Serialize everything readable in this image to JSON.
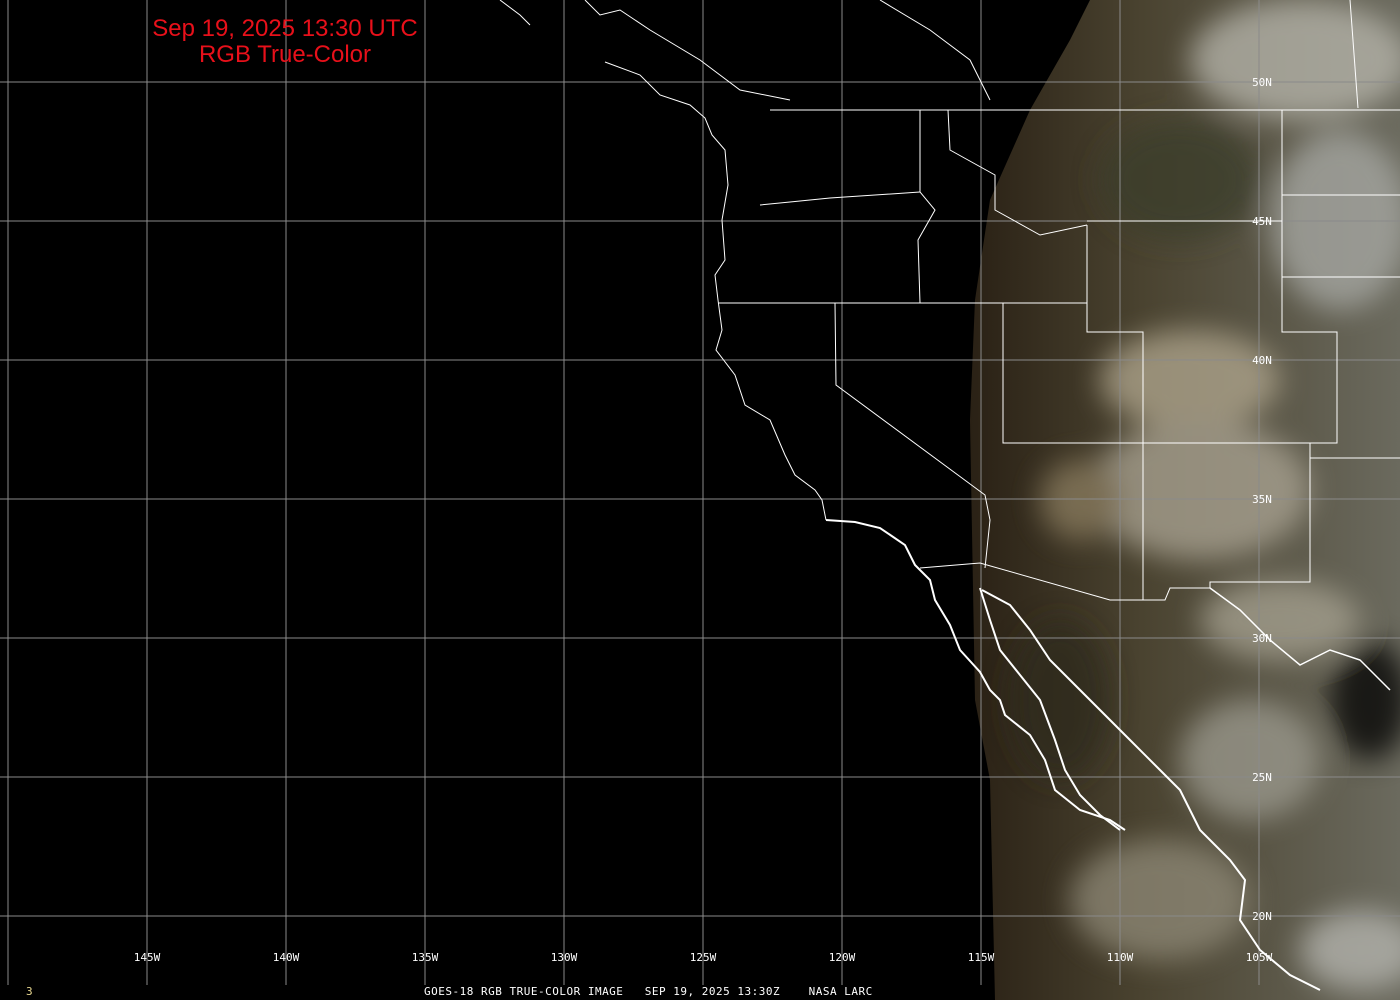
{
  "title": {
    "line1": "Sep 19, 2025 13:30 UTC",
    "line2": "RGB True-Color"
  },
  "footer": {
    "frame_number": "3",
    "caption": "GOES-18 RGB TRUE-COLOR IMAGE   SEP 19, 2025 13:30Z    NASA LARC"
  },
  "longitude_labels": [
    "145W",
    "140W",
    "135W",
    "130W",
    "125W",
    "120W",
    "115W",
    "110W",
    "105W"
  ],
  "latitude_labels": [
    "50N",
    "45N",
    "40N",
    "35N",
    "30N",
    "25N",
    "20N"
  ],
  "colors": {
    "title": "#e8101a",
    "grid": "#8a8a8a",
    "borders": "#ffffff",
    "frame_number": "#e8d890"
  }
}
